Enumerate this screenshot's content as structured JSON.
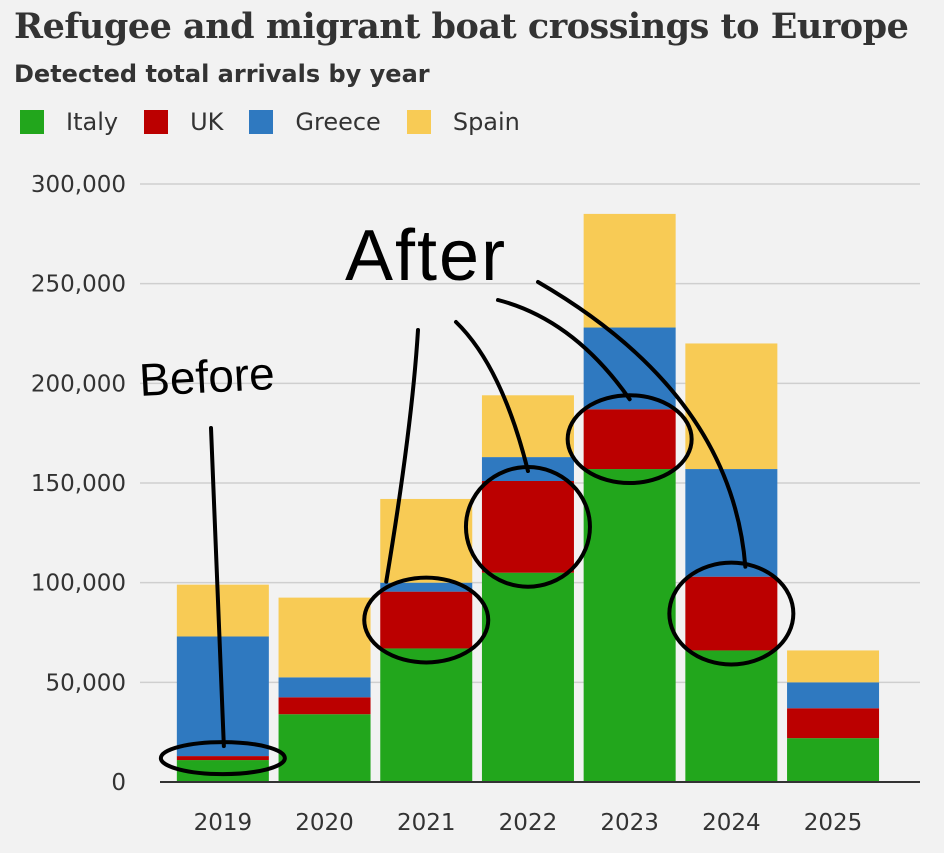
{
  "chart_data": {
    "type": "bar",
    "stacked": true,
    "title": "Refugee and migrant boat crossings to Europe",
    "subtitle": "Detected total arrivals by year",
    "categories": [
      "2019",
      "2020",
      "2021",
      "2022",
      "2023",
      "2024",
      "2025"
    ],
    "series": [
      {
        "name": "Italy",
        "color": "#22a61c",
        "values": [
          11000,
          34000,
          67000,
          105000,
          157000,
          66000,
          22000
        ]
      },
      {
        "name": "UK",
        "color": "#bb0000",
        "values": [
          2000,
          8500,
          28500,
          46000,
          30000,
          37000,
          15000
        ]
      },
      {
        "name": "Greece",
        "color": "#2f79c0",
        "values": [
          60000,
          10000,
          4500,
          12000,
          41000,
          54000,
          13000
        ]
      },
      {
        "name": "Spain",
        "color": "#f8cb55",
        "values": [
          26000,
          40000,
          42000,
          31000,
          57000,
          63000,
          16000
        ]
      }
    ],
    "ylim": [
      0,
      300000
    ],
    "yticks": [
      0,
      50000,
      100000,
      150000,
      200000,
      250000,
      300000
    ],
    "ytick_labels": [
      "0",
      "50,000",
      "100,000",
      "150,000",
      "200,000",
      "250,000",
      "300,000"
    ],
    "legend_position": "top-left",
    "grid": true,
    "annotations": {
      "before_label": "Before",
      "after_label": "After",
      "highlighted_series": "UK",
      "before_categories": [
        "2019"
      ],
      "after_categories": [
        "2021",
        "2022",
        "2023",
        "2024"
      ]
    }
  }
}
